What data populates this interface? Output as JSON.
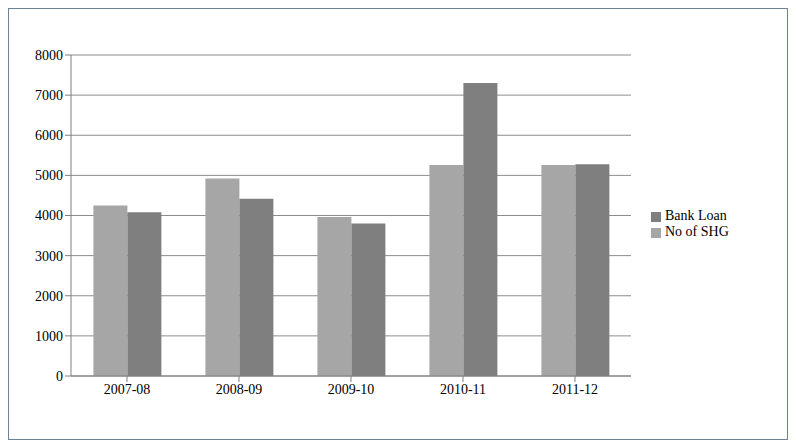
{
  "chart_data": {
    "type": "bar",
    "categories": [
      "2007-08",
      "2008-09",
      "2009-10",
      "2010-11",
      "2011-12"
    ],
    "series": [
      {
        "name": "No of SHG",
        "color": "#a6a6a6",
        "values": [
          4250,
          4920,
          3960,
          5260,
          5260
        ]
      },
      {
        "name": "Bank Loan",
        "color": "#7f7f7f",
        "values": [
          4080,
          4420,
          3800,
          7300,
          5280
        ]
      }
    ],
    "ylim": [
      0,
      8000
    ],
    "yticks": [
      0,
      1000,
      2000,
      3000,
      4000,
      5000,
      6000,
      7000,
      8000
    ],
    "grid": true,
    "legend": "right"
  }
}
